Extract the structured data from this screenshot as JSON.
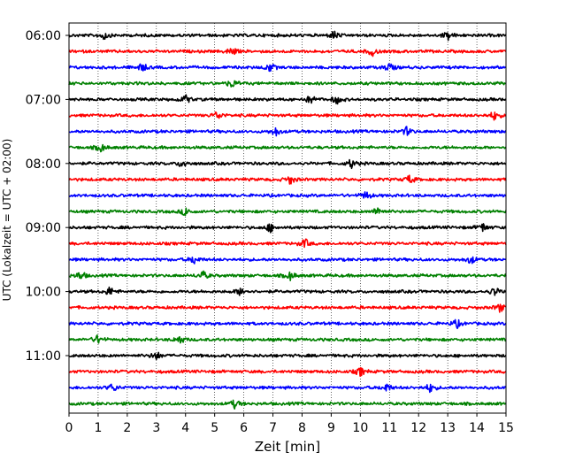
{
  "chart_data": {
    "type": "line",
    "chart_kind": "seismogram helicorder (drum plot)",
    "xlabel": "Zeit  [min]",
    "ylabel": "UTC (Lokalzeit = UTC + 02:00)",
    "xlim": [
      0,
      15
    ],
    "x_ticks": [
      "0",
      "1",
      "2",
      "3",
      "4",
      "5",
      "6",
      "7",
      "8",
      "9",
      "10",
      "11",
      "12",
      "13",
      "14",
      "15"
    ],
    "y_tick_labels": [
      "06:00",
      "07:00",
      "08:00",
      "09:00",
      "10:00",
      "11:00"
    ],
    "grid": "vertical dotted lines at each minute",
    "trace_interval_minutes": 15,
    "trace_color_cycle": [
      "#000000",
      "#ff0000",
      "#0000ff",
      "#008000"
    ],
    "traces": [
      {
        "start": "06:00",
        "color": "#000000",
        "events_min": [
          1.2,
          9.1,
          13.0
        ]
      },
      {
        "start": "06:15",
        "color": "#ff0000",
        "events_min": [
          5.6,
          10.4
        ]
      },
      {
        "start": "06:30",
        "color": "#0000ff",
        "events_min": [
          2.5,
          6.9,
          11.0
        ]
      },
      {
        "start": "06:45",
        "color": "#008000",
        "events_min": [
          5.6
        ]
      },
      {
        "start": "07:00",
        "color": "#000000",
        "events_min": [
          4.0,
          8.3,
          9.2
        ]
      },
      {
        "start": "07:15",
        "color": "#ff0000",
        "events_min": [
          5.1,
          14.6
        ]
      },
      {
        "start": "07:30",
        "color": "#0000ff",
        "events_min": [
          7.1,
          11.6
        ]
      },
      {
        "start": "07:45",
        "color": "#008000",
        "events_min": [
          1.1
        ]
      },
      {
        "start": "08:00",
        "color": "#000000",
        "events_min": [
          3.9,
          9.7
        ]
      },
      {
        "start": "08:15",
        "color": "#ff0000",
        "events_min": [
          7.6,
          11.7
        ]
      },
      {
        "start": "08:30",
        "color": "#0000ff",
        "events_min": [
          10.2
        ]
      },
      {
        "start": "08:45",
        "color": "#008000",
        "events_min": [
          4.0,
          10.6
        ]
      },
      {
        "start": "09:00",
        "color": "#000000",
        "events_min": [
          6.9,
          14.2
        ]
      },
      {
        "start": "09:15",
        "color": "#ff0000",
        "events_min": [
          8.1
        ]
      },
      {
        "start": "09:30",
        "color": "#0000ff",
        "events_min": [
          4.3,
          13.8
        ]
      },
      {
        "start": "09:45",
        "color": "#008000",
        "events_min": [
          0.4,
          4.6,
          7.6
        ]
      },
      {
        "start": "10:00",
        "color": "#000000",
        "events_min": [
          1.4,
          5.9,
          14.6
        ]
      },
      {
        "start": "10:15",
        "color": "#ff0000",
        "events_min": [
          14.8
        ]
      },
      {
        "start": "10:30",
        "color": "#0000ff",
        "events_min": [
          13.3
        ]
      },
      {
        "start": "10:45",
        "color": "#008000",
        "events_min": [
          1.0,
          3.8
        ]
      },
      {
        "start": "11:00",
        "color": "#000000",
        "events_min": [
          3.0
        ]
      },
      {
        "start": "11:15",
        "color": "#ff0000",
        "events_min": [
          10.0
        ]
      },
      {
        "start": "11:30",
        "color": "#0000ff",
        "events_min": [
          1.5,
          10.9,
          12.4
        ]
      },
      {
        "start": "11:45",
        "color": "#008000",
        "events_min": [
          5.7
        ]
      }
    ]
  }
}
